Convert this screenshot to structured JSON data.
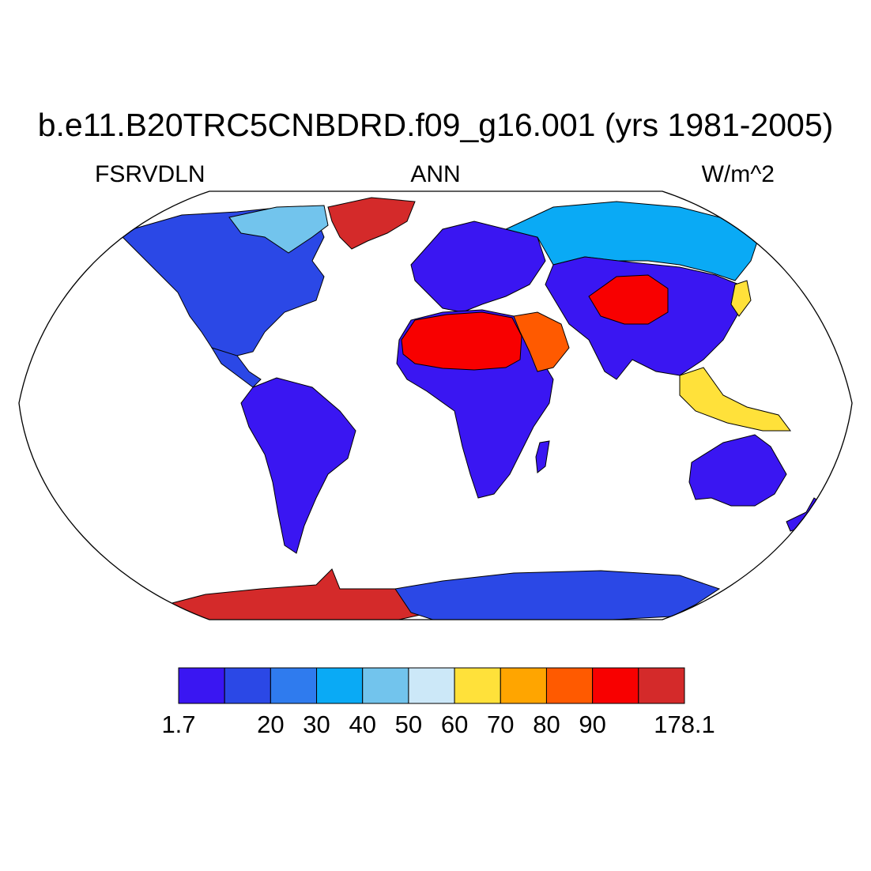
{
  "title": "b.e11.B20TRC5CNBDRD.f09_g16.001 (yrs 1981-2005)",
  "subtitles": {
    "left": "FSRVDLN",
    "center": "ANN",
    "right": "W/m^2"
  },
  "colorbar": {
    "colors": [
      "#3a16f2",
      "#2b48e6",
      "#2f7bee",
      "#0aaaf5",
      "#72c4ed",
      "#cce8f8",
      "#ffe13a",
      "#ffa500",
      "#ff5a00",
      "#f80000",
      "#d42a2a"
    ],
    "labels": [
      "1.7",
      "",
      "20",
      "30",
      "40",
      "50",
      "60",
      "70",
      "80",
      "90",
      "",
      "178.1"
    ]
  },
  "map": {
    "ocean_color": "#ffffff",
    "coastline_color": "#000000",
    "regions": [
      {
        "name": "north-america",
        "level": 1
      },
      {
        "name": "canadian-arctic",
        "level": 4
      },
      {
        "name": "greenland",
        "level": 10
      },
      {
        "name": "south-america",
        "level": 0
      },
      {
        "name": "europe",
        "level": 0
      },
      {
        "name": "siberia",
        "level": 3
      },
      {
        "name": "africa",
        "level": 0
      },
      {
        "name": "sahara",
        "level": 9
      },
      {
        "name": "arabia",
        "level": 8
      },
      {
        "name": "tibet",
        "level": 9
      },
      {
        "name": "south-asia",
        "level": 0
      },
      {
        "name": "australia",
        "level": 1
      },
      {
        "name": "maritime-asia",
        "level": 0
      },
      {
        "name": "antarctica-west",
        "level": 6
      },
      {
        "name": "antarctica-east",
        "level": 10
      }
    ]
  }
}
